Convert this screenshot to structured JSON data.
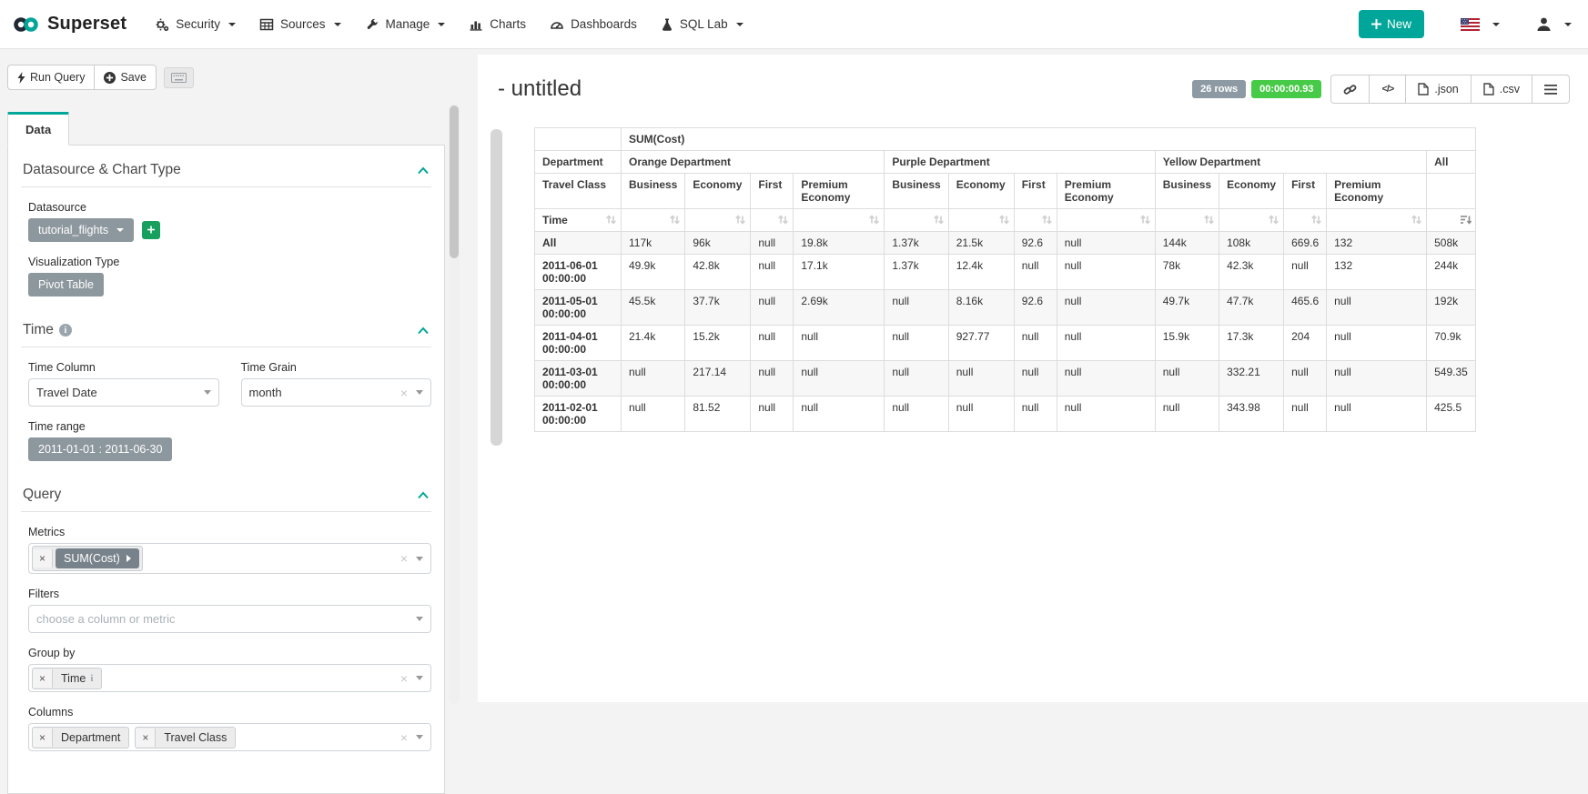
{
  "navbar": {
    "brand": "Superset",
    "items": [
      {
        "label": "Security",
        "icon": "cogs-icon",
        "dropdown": true
      },
      {
        "label": "Sources",
        "icon": "table-icon",
        "dropdown": true
      },
      {
        "label": "Manage",
        "icon": "wrench-icon",
        "dropdown": true
      },
      {
        "label": "Charts",
        "icon": "bar-chart-icon",
        "dropdown": false
      },
      {
        "label": "Dashboards",
        "icon": "dashboard-icon",
        "dropdown": false
      },
      {
        "label": "SQL Lab",
        "icon": "flask-icon",
        "dropdown": true
      }
    ],
    "new_button_label": "New",
    "locale_icon": "us-flag-icon",
    "user_icon": "user-icon"
  },
  "toolbar": {
    "run_query_label": "Run Query",
    "save_label": "Save"
  },
  "tabs": {
    "data_label": "Data"
  },
  "controls": {
    "datasource_section_title": "Datasource & Chart Type",
    "datasource_label": "Datasource",
    "datasource_value": "tutorial_flights",
    "viz_type_label": "Visualization Type",
    "viz_type_value": "Pivot Table",
    "time_section_title": "Time",
    "time_column_label": "Time Column",
    "time_column_value": "Travel Date",
    "time_grain_label": "Time Grain",
    "time_grain_value": "month",
    "time_range_label": "Time range",
    "time_range_value": "2011-01-01 : 2011-06-30",
    "query_section_title": "Query",
    "metrics_label": "Metrics",
    "metrics_token": "SUM(Cost)",
    "filters_label": "Filters",
    "filters_placeholder": "choose a column or metric",
    "groupby_label": "Group by",
    "groupby_tokens": [
      "Time"
    ],
    "columns_label": "Columns",
    "columns_tokens": [
      "Department",
      "Travel Class"
    ]
  },
  "result": {
    "title": "- untitled",
    "rows_badge": "26 rows",
    "timer_badge": "00:00:00.93",
    "export_json_label": ".json",
    "export_csv_label": ".csv"
  },
  "colors": {
    "brand_teal": "#00a699",
    "plus_green": "#17a05d",
    "timer_green": "#47ca47",
    "badge_gray": "#8d9aa4",
    "pill_gray": "#8d979e"
  },
  "chart_data": {
    "type": "table",
    "title": "- untitled",
    "metric_header": "SUM(Cost)",
    "row_dim_label": "Department",
    "col_dim_label": "Travel Class",
    "time_label": "Time",
    "all_label": "All",
    "column_groups": [
      {
        "label": "Orange Department",
        "classes": [
          "Business",
          "Economy",
          "First",
          "Premium Economy"
        ]
      },
      {
        "label": "Purple Department",
        "classes": [
          "Business",
          "Economy",
          "First",
          "Premium Economy"
        ]
      },
      {
        "label": "Yellow Department",
        "classes": [
          "Business",
          "Economy",
          "First",
          "Premium Economy"
        ]
      }
    ],
    "rows": [
      {
        "label": "All",
        "values": [
          "117k",
          "96k",
          "null",
          "19.8k",
          "1.37k",
          "21.5k",
          "92.6",
          "null",
          "144k",
          "108k",
          "669.6",
          "132",
          "508k"
        ]
      },
      {
        "label": "2011-06-01 00:00:00",
        "values": [
          "49.9k",
          "42.8k",
          "null",
          "17.1k",
          "1.37k",
          "12.4k",
          "null",
          "null",
          "78k",
          "42.3k",
          "null",
          "132",
          "244k"
        ]
      },
      {
        "label": "2011-05-01 00:00:00",
        "values": [
          "45.5k",
          "37.7k",
          "null",
          "2.69k",
          "null",
          "8.16k",
          "92.6",
          "null",
          "49.7k",
          "47.7k",
          "465.6",
          "null",
          "192k"
        ]
      },
      {
        "label": "2011-04-01 00:00:00",
        "values": [
          "21.4k",
          "15.2k",
          "null",
          "null",
          "null",
          "927.77",
          "null",
          "null",
          "15.9k",
          "17.3k",
          "204",
          "null",
          "70.9k"
        ]
      },
      {
        "label": "2011-03-01 00:00:00",
        "values": [
          "null",
          "217.14",
          "null",
          "null",
          "null",
          "null",
          "null",
          "null",
          "null",
          "332.21",
          "null",
          "null",
          "549.35"
        ]
      },
      {
        "label": "2011-02-01 00:00:00",
        "values": [
          "null",
          "81.52",
          "null",
          "null",
          "null",
          "null",
          "null",
          "null",
          "null",
          "343.98",
          "null",
          "null",
          "425.5"
        ]
      }
    ]
  }
}
